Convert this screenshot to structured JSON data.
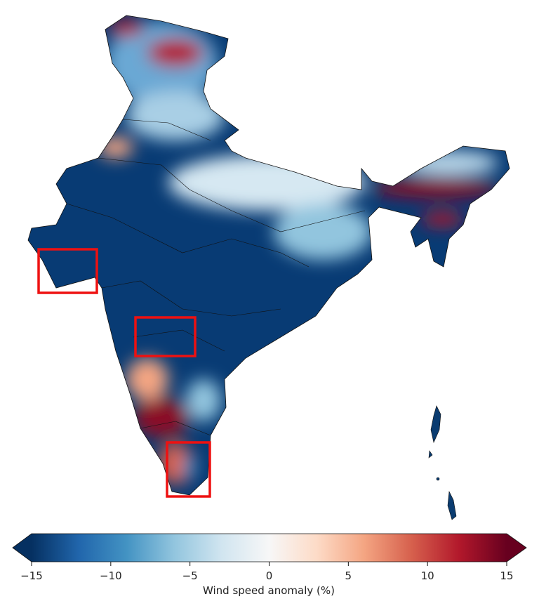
{
  "colorbar": {
    "label": "Wind speed anomaly (%)",
    "lim": [
      -15,
      15
    ],
    "ticks": [
      {
        "value": -15,
        "label": "−15"
      },
      {
        "value": -10,
        "label": "−10"
      },
      {
        "value": -5,
        "label": "−5"
      },
      0,
      5,
      10,
      15
    ]
  }
}
